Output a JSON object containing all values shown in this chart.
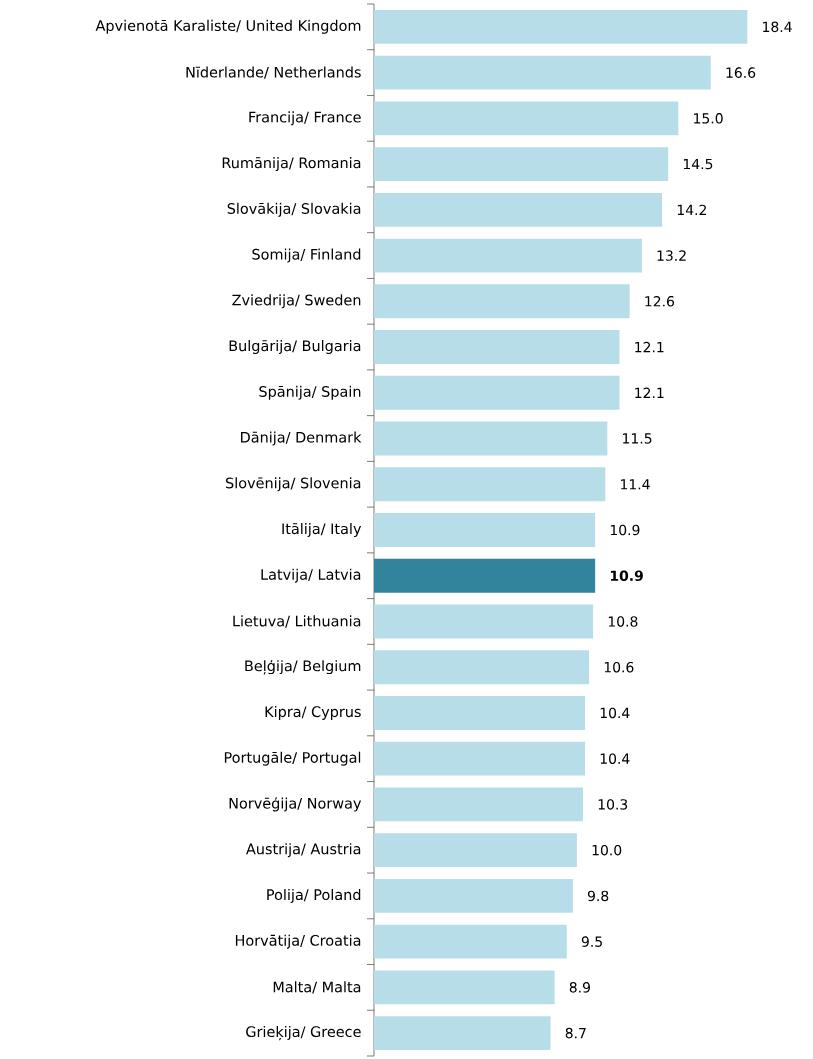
{
  "chart_data": {
    "type": "bar",
    "orientation": "horizontal",
    "value_labels": [
      "18.4",
      "16.6",
      "15.0",
      "14.5",
      "14.2",
      "13.2",
      "12.6",
      "12.1",
      "12.1",
      "11.5",
      "11.4",
      "10.9",
      "**10.9**",
      "10.8",
      "10.6",
      "10.4",
      "10.4",
      "10.3",
      "10.0",
      "9.8",
      "9.5",
      "8.9",
      "8.7"
    ],
    "categories": [
      "Apvienotā Karaliste/ United Kingdom",
      "Nīderlande/ Netherlands",
      "Francija/ France",
      "Rumānija/ Romania",
      "Slovākija/ Slovakia",
      "Somija/ Finland",
      "Zviedrija/ Sweden",
      "Bulgārija/ Bulgaria",
      "Spānija/ Spain",
      "Dānija/ Denmark",
      "Slovēnija/ Slovenia",
      "Itālija/ Italy",
      "Latvija/ Latvia",
      "Lietuva/ Lithuania",
      "Beļģija/ Belgium",
      "Kipra/ Cyprus",
      "Portugāle/ Portugal",
      "Norvēģija/ Norway",
      "Austrija/ Austria",
      "Polija/ Poland",
      "Horvātija/ Croatia",
      "Malta/ Malta",
      "Grieķija/ Greece"
    ],
    "values": [
      18.4,
      16.6,
      15.0,
      14.5,
      14.2,
      13.2,
      12.6,
      12.1,
      12.1,
      11.5,
      11.4,
      10.9,
      10.9,
      10.8,
      10.6,
      10.4,
      10.4,
      10.3,
      10.0,
      9.8,
      9.5,
      8.9,
      8.7
    ],
    "colors": [
      "#b7dde8",
      "#b7dde8",
      "#b7dde8",
      "#b7dde8",
      "#b7dde8",
      "#b7dde8",
      "#b7dde8",
      "#b7dde8",
      "#b7dde8",
      "#b7dde8",
      "#b7dde8",
      "#b7dde8",
      "#31849b",
      "#b7dde8",
      "#b7dde8",
      "#b7dde8",
      "#b7dde8",
      "#b7dde8",
      "#b7dde8",
      "#b7dde8",
      "#b7dde8",
      "#b7dde8",
      "#b7dde8"
    ]
  }
}
